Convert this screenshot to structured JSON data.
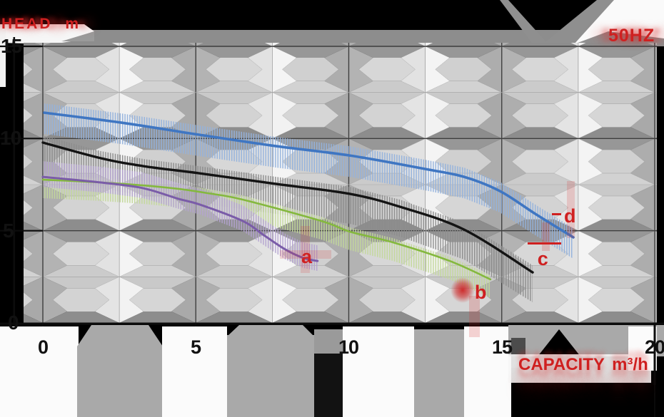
{
  "header": {
    "ylabel": "HEAD m",
    "freq": "50HZ"
  },
  "footer": {
    "xlabel": "CAPACITY m³/h"
  },
  "axis": {
    "yticklabels": [
      "15",
      "10",
      "5",
      "0"
    ],
    "xticklabels": [
      "0",
      "5",
      "10",
      "15",
      "20"
    ]
  },
  "style": {
    "accent_red": "#cf2020",
    "axis_black": "#111111",
    "background": "#000000"
  },
  "chart_data": {
    "type": "line",
    "xlabel": "CAPACITY m³/h",
    "ylabel": "HEAD m",
    "annotation": "50HZ",
    "xlim": [
      0,
      20
    ],
    "ylim": [
      0,
      15
    ],
    "xticks": [
      0,
      5,
      10,
      15,
      20
    ],
    "yticks": [
      0,
      5,
      10,
      15
    ],
    "grid": "beveled tile wall, minor lines every 2.5 units",
    "legend_position": "inline curve labels a b c d",
    "series": [
      {
        "name": "a",
        "color": "#7a5ca8",
        "hatch": "#b4a3d0",
        "width": 3,
        "band_up": 22,
        "band_down": 14,
        "label_xy": [
          8.68,
          3.6
        ],
        "points": [
          [
            0,
            7.92
          ],
          [
            1.87,
            7.62
          ],
          [
            3.27,
            7.31
          ],
          [
            4.43,
            6.73
          ],
          [
            5.13,
            6.42
          ],
          [
            6.53,
            5.53
          ],
          [
            7.23,
            4.75
          ],
          [
            7.93,
            3.98
          ],
          [
            8.52,
            3.52
          ],
          [
            8.98,
            3.36
          ]
        ]
      },
      {
        "name": "b",
        "color": "#84b83e",
        "hatch": "#c3d89a",
        "width": 2.6,
        "band_up": 6,
        "band_down": 26,
        "label_xy": [
          14.35,
          1.66
        ],
        "points": [
          [
            0,
            7.77
          ],
          [
            1.87,
            7.62
          ],
          [
            3.27,
            7.46
          ],
          [
            4.43,
            7.27
          ],
          [
            5.37,
            7.04
          ],
          [
            6.53,
            6.69
          ],
          [
            9.1,
            5.53
          ],
          [
            10.03,
            4.95
          ],
          [
            11.44,
            4.37
          ],
          [
            13.3,
            3.36
          ],
          [
            14.63,
            2.36
          ]
        ]
      },
      {
        "name": "c",
        "color": "#141414",
        "hatch": "#8c8c8c",
        "width": 3.4,
        "band_up": 10,
        "band_down": 42,
        "label_xy": [
          16.4,
          3.48
        ],
        "points": [
          [
            0,
            9.78
          ],
          [
            1.9,
            8.93
          ],
          [
            3.3,
            8.5
          ],
          [
            5.09,
            8.12
          ],
          [
            7.61,
            7.54
          ],
          [
            10.03,
            7.0
          ],
          [
            11.67,
            6.3
          ],
          [
            13.77,
            5.06
          ],
          [
            16.01,
            2.74
          ]
        ]
      },
      {
        "name": "d",
        "color": "#3f76c2",
        "hatch": "#93b2dd",
        "width": 3.6,
        "band_up": 13,
        "band_down": 30,
        "label_xy": [
          17.27,
          5.8
        ],
        "points": [
          [
            0.05,
            11.4
          ],
          [
            2.57,
            10.86
          ],
          [
            5.09,
            10.21
          ],
          [
            7.61,
            9.59
          ],
          [
            10.03,
            9.08
          ],
          [
            12.49,
            8.35
          ],
          [
            13.77,
            7.92
          ],
          [
            14.94,
            7.15
          ],
          [
            16.1,
            5.91
          ],
          [
            17.34,
            4.64
          ]
        ]
      }
    ]
  }
}
